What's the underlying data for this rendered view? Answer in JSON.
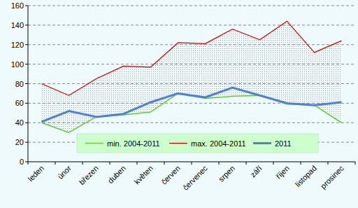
{
  "chart_data": {
    "type": "line",
    "categories": [
      "leden",
      "únor",
      "březen",
      "duben",
      "květen",
      "červen",
      "červenec",
      "srpen",
      "září",
      "říjen",
      "listopad",
      "prosinec"
    ],
    "series": [
      {
        "name": "min. 2004-2011",
        "color": "#66cc33",
        "values": [
          40,
          30,
          46,
          48,
          51,
          70,
          65,
          67,
          68,
          59,
          58,
          40
        ]
      },
      {
        "name": "max. 2004-2011",
        "color": "#cc0000",
        "values": [
          80,
          68,
          85,
          98,
          97,
          122,
          121,
          136,
          125,
          144,
          112,
          124
        ]
      },
      {
        "name": "2011",
        "color": "#4f7fd6",
        "values": [
          41,
          52,
          46,
          49,
          61,
          70,
          66,
          76,
          68,
          60,
          58,
          61
        ]
      }
    ],
    "ylim": [
      0,
      160
    ],
    "yticks": [
      0,
      20,
      40,
      60,
      80,
      100,
      120,
      140,
      160
    ],
    "grid": true,
    "legend": "bottom"
  }
}
